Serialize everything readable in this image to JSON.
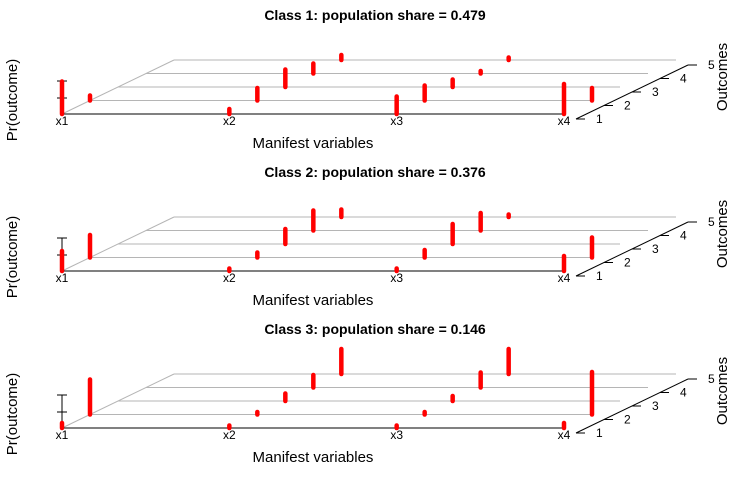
{
  "chart_data": {
    "type": "scatter",
    "panels": [
      {
        "title": "Class 1: population share = 0.479",
        "xlabel": "Manifest variables",
        "ylabel": "Pr(outcome)",
        "zlabel": "Outcomes",
        "variables": [
          "x1",
          "x2",
          "x3",
          "x4"
        ],
        "outcomes": [
          "1",
          "2",
          "3",
          "4",
          "5"
        ],
        "probabilities": [
          [
            0.65,
            0.1,
            0.0,
            0.0,
            0.0
          ],
          [
            0.1,
            0.25,
            0.35,
            0.2,
            0.1
          ],
          [
            0.35,
            0.3,
            0.15,
            0.05,
            0.05
          ],
          [
            0.6,
            0.25,
            0.0,
            0.0,
            0.0
          ]
        ]
      },
      {
        "title": "Class 2: population share = 0.376",
        "xlabel": "Manifest variables",
        "ylabel": "Pr(outcome)",
        "zlabel": "Outcomes",
        "variables": [
          "x1",
          "x2",
          "x3",
          "x4"
        ],
        "outcomes": [
          "1",
          "2",
          "3",
          "4",
          "5"
        ],
        "probabilities": [
          [
            0.4,
            0.45,
            0.0,
            0.0,
            0.0
          ],
          [
            0.05,
            0.1,
            0.3,
            0.4,
            0.15
          ],
          [
            0.05,
            0.15,
            0.4,
            0.35,
            0.05
          ],
          [
            0.3,
            0.4,
            0.0,
            0.0,
            0.0
          ]
        ]
      },
      {
        "title": "Class 3: population share = 0.146",
        "xlabel": "Manifest variables",
        "ylabel": "Pr(outcome)",
        "zlabel": "Outcomes",
        "variables": [
          "x1",
          "x2",
          "x3",
          "x4"
        ],
        "outcomes": [
          "1",
          "2",
          "3",
          "4",
          "5"
        ],
        "probabilities": [
          [
            0.1,
            0.7,
            0.0,
            0.0,
            0.0
          ],
          [
            0.05,
            0.05,
            0.15,
            0.25,
            0.5
          ],
          [
            0.05,
            0.05,
            0.1,
            0.3,
            0.5
          ],
          [
            0.1,
            0.85,
            0.0,
            0.0,
            0.0
          ]
        ]
      }
    ]
  },
  "colors": {
    "point": "#ff0000",
    "grid": "#b5b5b5",
    "axis": "#000000"
  }
}
